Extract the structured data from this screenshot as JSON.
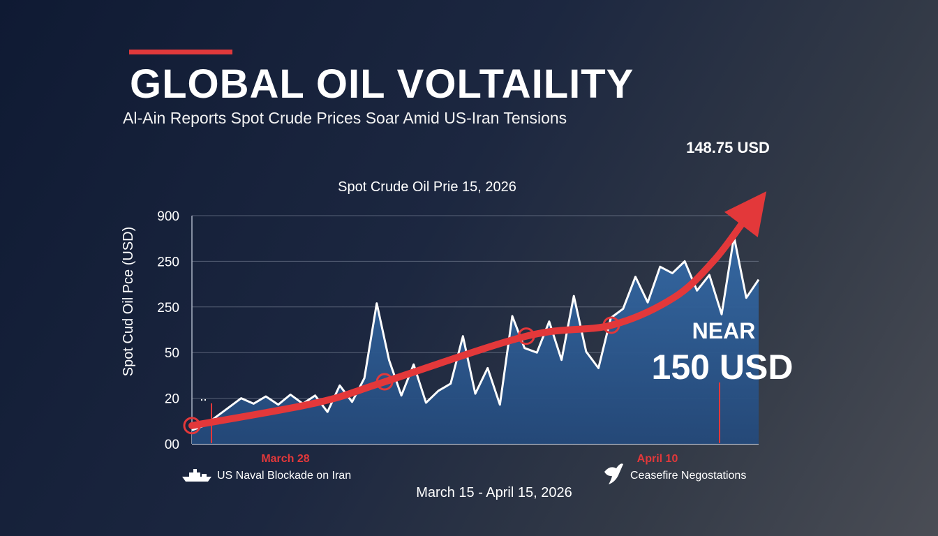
{
  "headline": {
    "title": "GLOBAL OIL VOLTAILITY",
    "subtitle": "Al-Ain Reports Spot Crude Prices Soar Amid US-Iran Tensions"
  },
  "colors": {
    "accent": "#e0393b",
    "area_fill": "#2f5f96",
    "line": "#ffffff",
    "trend": "#e3383a"
  },
  "chart_data": {
    "type": "area",
    "title": "Spot Crude Oil Prie 15, 2026",
    "ylabel": "Spot Cud Oil Pce (USD)",
    "xlabel": "March 15 - April 15, 2026",
    "y_tick_labels": [
      "00",
      "20",
      "50",
      "250",
      "250",
      "900"
    ],
    "grid": true,
    "series": [
      {
        "values": [
          15,
          20,
          30,
          40,
          50,
          44,
          52,
          43,
          54,
          44,
          53,
          35,
          64,
          46,
          72,
          154,
          92,
          53,
          87,
          45,
          58,
          66,
          118,
          55,
          83,
          43,
          140,
          105,
          100,
          134,
          92,
          162,
          101,
          83,
          138,
          148,
          183,
          155,
          194,
          187,
          200,
          168,
          185,
          142,
          227,
          160,
          180
        ]
      }
    ],
    "trend_points": [
      {
        "x": 0.0,
        "y": 20
      },
      {
        "x": 0.22,
        "y": 45
      },
      {
        "x": 0.34,
        "y": 68
      },
      {
        "x": 0.59,
        "y": 118
      },
      {
        "x": 0.74,
        "y": 130
      },
      {
        "x": 0.85,
        "y": 160
      },
      {
        "x": 0.92,
        "y": 200
      },
      {
        "x": 0.975,
        "y": 245
      }
    ],
    "markers": [
      0.0,
      0.34,
      0.59,
      0.74
    ],
    "events": [
      {
        "date": "March 28",
        "label": "US Naval Blockade on Iran",
        "icon": "ship-icon"
      },
      {
        "date": "April 10",
        "label": "Ceasefire Negostations",
        "icon": "dove-icon"
      }
    ],
    "callouts": {
      "peak": "148.75 USD",
      "near_label": "NEAR",
      "near_value": "150 USD"
    }
  }
}
